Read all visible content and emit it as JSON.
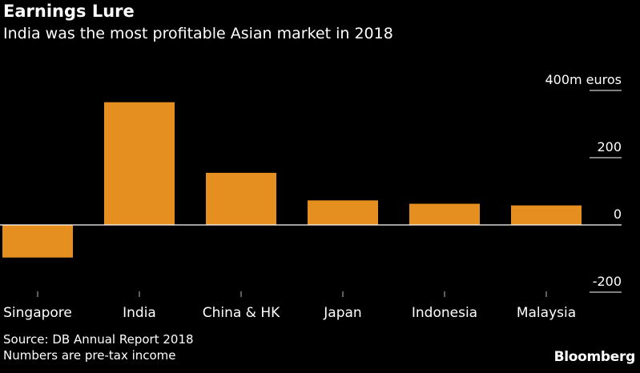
{
  "title": "Earnings Lure",
  "subtitle": "India was the most profitable Asian market in 2018",
  "footer": {
    "source": "Source: DB Annual Report 2018",
    "note": "Numbers are pre-tax income"
  },
  "brand": "Bloomberg",
  "colors": {
    "bar": "#E68F21",
    "background": "#000000",
    "text": "#FFFFFF",
    "zero_line": "#FFFFFF"
  },
  "chart_data": {
    "type": "bar",
    "categories": [
      "Singapore",
      "India",
      "China & HK",
      "Japan",
      "Indonesia",
      "Malaysia"
    ],
    "values": [
      -97,
      365,
      155,
      73,
      63,
      58
    ],
    "yticks": [
      {
        "value": 400,
        "label": "400m euros"
      },
      {
        "value": 200,
        "label": "200"
      },
      {
        "value": 0,
        "label": "0"
      },
      {
        "value": -200,
        "label": "-200"
      }
    ],
    "ylim": [
      -200,
      400
    ],
    "units": "m euros",
    "axis_side": "right",
    "legend": "none"
  }
}
